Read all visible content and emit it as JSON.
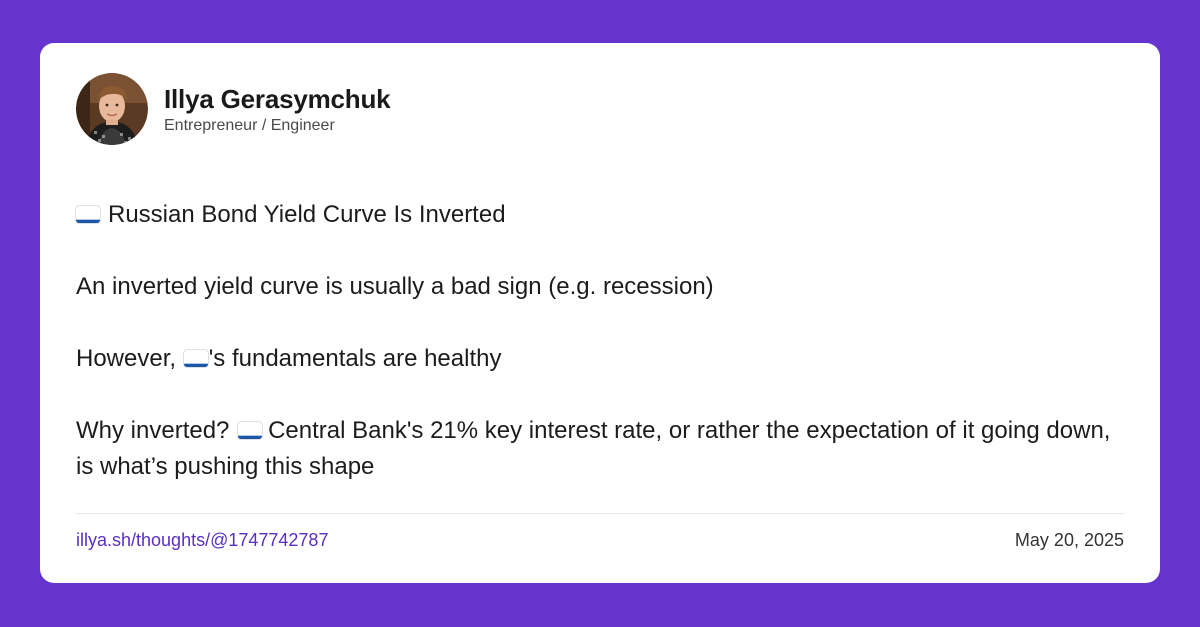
{
  "author": {
    "name": "Illya Gerasymchuk",
    "role": "Entrepreneur / Engineer",
    "avatar_icon": "avatar-photo"
  },
  "post": {
    "title": "Russian Bond Yield Curve Is Inverted",
    "para1": "An inverted yield curve is usually a bad sign (e.g. recession)",
    "para2_pre": "However, ",
    "para2_post": "'s fundamentals are healthy",
    "para3_pre": "Why inverted?",
    "para3_post": "Central Bank's 21% key interest rate, or rather the expectation of it going down, is what’s pushing this shape",
    "flag_icon": "russia-flag-icon"
  },
  "footer": {
    "link": "illya.sh/thoughts/@1747742787",
    "date": "May 20, 2025"
  },
  "colors": {
    "background": "#6633cc",
    "card": "#ffffff",
    "link": "#5a2fc2",
    "text": "#1c1c1c"
  }
}
